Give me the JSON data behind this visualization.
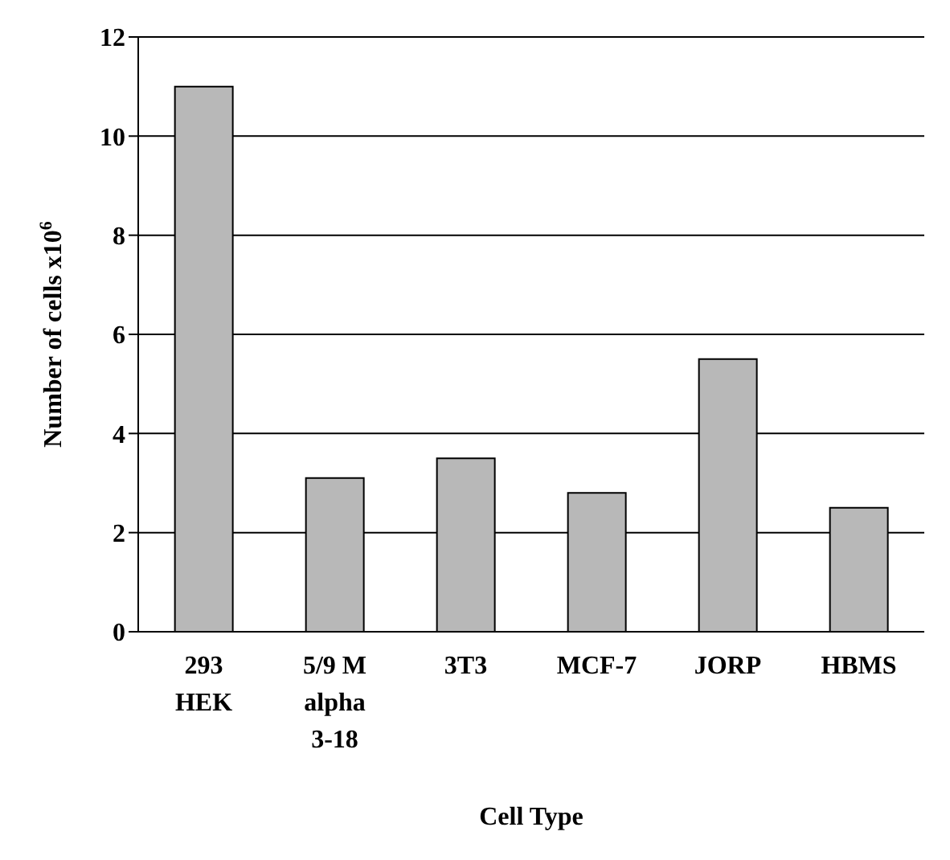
{
  "chart_data": {
    "type": "bar",
    "xlabel": "Cell Type",
    "ylabel": "Number of cells x10$^{6}$",
    "categories": [
      "293 HEK",
      "5/9 M alpha 3-18",
      "3T3",
      "MCF-7",
      "JORP",
      "HBMS"
    ],
    "values": [
      11,
      3.1,
      3.5,
      2.8,
      5.5,
      2.5
    ],
    "color": "#b8b8b8",
    "ylim": [
      0,
      12
    ],
    "yticks": [
      0,
      2,
      4,
      6,
      8,
      10,
      12
    ],
    "grid": "y"
  }
}
